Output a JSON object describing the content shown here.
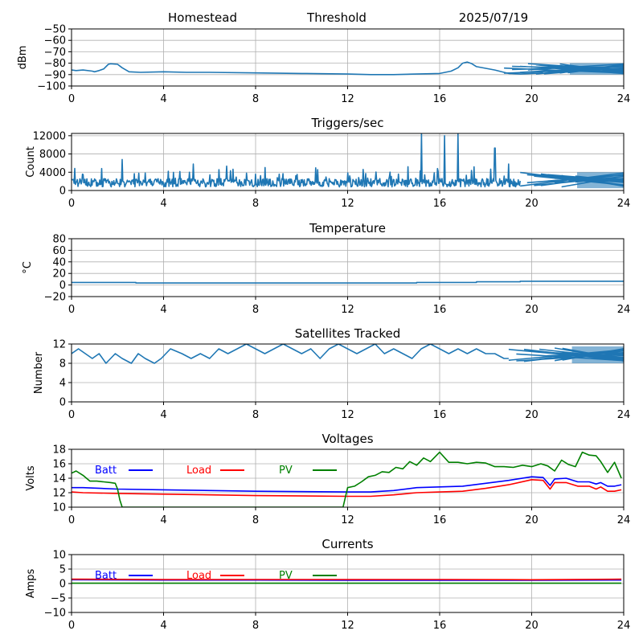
{
  "header": {
    "station": "Homestead",
    "mode": "Threshold",
    "date": "2025/07/19"
  },
  "chart_data": [
    {
      "id": "signal",
      "type": "line",
      "title": "",
      "ylabel": "dBm",
      "xlim": [
        0,
        24
      ],
      "ylim": [
        -100,
        -50
      ],
      "xticks": [
        "0",
        "4",
        "8",
        "12",
        "16",
        "20",
        "24"
      ],
      "yticks": [
        "−100",
        "−90",
        "−80",
        "−70",
        "−60",
        "−50"
      ],
      "grid": true,
      "series": [
        {
          "color": "#1f77b4",
          "x": [
            0,
            0.2,
            0.5,
            0.9,
            1.0,
            1.2,
            1.4,
            1.6,
            1.7,
            2.0,
            2.2,
            2.5,
            3.0,
            4.0,
            5.0,
            6.0,
            8.0,
            10.0,
            12.0,
            13.0,
            14.0,
            15.0,
            16.0,
            16.5,
            16.8,
            17.0,
            17.2,
            17.4,
            17.6,
            18.0,
            18.4,
            18.8,
            19.0,
            19.5,
            20.0,
            20.5
          ],
          "y": [
            -86,
            -86.5,
            -86,
            -87,
            -87.5,
            -86.5,
            -85,
            -81,
            -80.5,
            -81,
            -84,
            -87.5,
            -88,
            -87.5,
            -88,
            -88,
            -88.5,
            -89,
            -89.5,
            -90,
            -90,
            -89.5,
            -89,
            -87,
            -84,
            -80,
            -79,
            -80.5,
            -83,
            -84.5,
            -86,
            -88,
            -89,
            -89.5,
            -89,
            -88.5
          ]
        }
      ],
      "band": {
        "x": [
          18.8,
          24
        ],
        "y_low": -90,
        "y_high": -80
      }
    },
    {
      "id": "triggers",
      "type": "line",
      "title": "Triggers/sec",
      "ylabel": "Count",
      "xlim": [
        0,
        24
      ],
      "ylim": [
        0,
        12500
      ],
      "xticks": [
        "0",
        "4",
        "8",
        "12",
        "16",
        "20",
        "24"
      ],
      "yticks": [
        "0",
        "4000",
        "8000",
        "12000"
      ],
      "grid": true,
      "series": [
        {
          "color": "#1f77b4",
          "baseline": 1700,
          "noise": 1300,
          "spikes": [
            [
              0.5,
              3500
            ],
            [
              1.3,
              4800
            ],
            [
              2.2,
              6800
            ],
            [
              4.2,
              4200
            ],
            [
              5.3,
              5800
            ],
            [
              7.6,
              3800
            ],
            [
              9.8,
              3500
            ],
            [
              12.1,
              3200
            ],
            [
              14.2,
              3600
            ],
            [
              15.2,
              12500
            ],
            [
              15.9,
              4800
            ],
            [
              16.2,
              12000
            ],
            [
              16.8,
              12400
            ],
            [
              17.5,
              5200
            ],
            [
              18.4,
              9300
            ],
            [
              19.0,
              5800
            ],
            [
              19.6,
              4000
            ]
          ]
        }
      ],
      "band": {
        "x": [
          19.5,
          24
        ],
        "y_low": 500,
        "y_high": 4000
      }
    },
    {
      "id": "temperature",
      "type": "line",
      "title": "Temperature",
      "ylabel": "°C",
      "xlim": [
        0,
        24
      ],
      "ylim": [
        -20,
        80
      ],
      "xticks": [
        "0",
        "4",
        "8",
        "12",
        "16",
        "20",
        "24"
      ],
      "yticks": [
        "−20",
        "0",
        "20",
        "40",
        "60",
        "80"
      ],
      "grid": true,
      "series": [
        {
          "color": "#1f77b4",
          "x": [
            0,
            2.8,
            2.8,
            15.0,
            15.0,
            17.6,
            17.6,
            19.5,
            19.5,
            24
          ],
          "y": [
            4.5,
            4.5,
            3.5,
            3.5,
            4.5,
            4.5,
            5.5,
            5.5,
            6.5,
            6.5
          ]
        }
      ]
    },
    {
      "id": "satellites",
      "type": "line",
      "title": "Satellites Tracked",
      "ylabel": "Number",
      "xlim": [
        0,
        24
      ],
      "ylim": [
        0,
        12
      ],
      "xticks": [
        "0",
        "4",
        "8",
        "12",
        "16",
        "20",
        "24"
      ],
      "yticks": [
        "0",
        "4",
        "8",
        "12"
      ],
      "grid": true,
      "series": [
        {
          "color": "#1f77b4",
          "x": [
            0,
            0.3,
            0.6,
            0.9,
            1.2,
            1.5,
            1.9,
            2.2,
            2.6,
            2.9,
            3.2,
            3.6,
            3.9,
            4.3,
            4.8,
            5.2,
            5.6,
            6.0,
            6.4,
            6.8,
            7.2,
            7.6,
            8.0,
            8.4,
            8.8,
            9.2,
            9.6,
            10.0,
            10.4,
            10.8,
            11.2,
            11.6,
            12.0,
            12.4,
            12.8,
            13.2,
            13.6,
            14.0,
            14.4,
            14.8,
            15.2,
            15.6,
            16.0,
            16.4,
            16.8,
            17.2,
            17.6,
            18.0,
            18.4,
            18.8,
            19.0
          ],
          "y": [
            10,
            11,
            10,
            9,
            10,
            8,
            10,
            9,
            8,
            10,
            9,
            8,
            9,
            11,
            10,
            9,
            10,
            9,
            11,
            10,
            11,
            12,
            11,
            10,
            11,
            12,
            11,
            10,
            11,
            9,
            11,
            12,
            11,
            10,
            11,
            12,
            10,
            11,
            10,
            9,
            11,
            12,
            11,
            10,
            11,
            10,
            11,
            10,
            10,
            9,
            9
          ]
        }
      ],
      "band": {
        "x": [
          19.0,
          24
        ],
        "y_low": 8,
        "y_high": 11.5
      }
    },
    {
      "id": "voltages",
      "type": "line",
      "title": "Voltages",
      "ylabel": "Volts",
      "xlim": [
        0,
        24
      ],
      "ylim": [
        10,
        18
      ],
      "xticks": [
        "0",
        "4",
        "8",
        "12",
        "16",
        "20",
        "24"
      ],
      "yticks": [
        "10",
        "12",
        "14",
        "16",
        "18"
      ],
      "grid": true,
      "legend": "top-left",
      "series": [
        {
          "name": "Batt",
          "color": "#0000ff",
          "x": [
            0,
            0.5,
            2,
            4,
            8,
            12,
            13,
            14,
            15,
            16,
            17,
            18,
            19,
            20,
            20.5,
            20.8,
            21,
            21.5,
            22,
            22.5,
            22.8,
            23,
            23.3,
            23.6,
            23.9
          ],
          "y": [
            12.7,
            12.7,
            12.5,
            12.4,
            12.2,
            12.1,
            12.1,
            12.3,
            12.7,
            12.8,
            12.9,
            13.3,
            13.7,
            14.2,
            14.1,
            13.0,
            13.9,
            14.0,
            13.5,
            13.5,
            13.2,
            13.4,
            12.9,
            12.9,
            13.1
          ]
        },
        {
          "name": "Load",
          "color": "#ff0000",
          "x": [
            0,
            0.5,
            2,
            4,
            8,
            12,
            13,
            14,
            15,
            16,
            17,
            18,
            19,
            20,
            20.5,
            20.8,
            21,
            21.5,
            22,
            22.5,
            22.8,
            23,
            23.3,
            23.6,
            23.9
          ],
          "y": [
            12.1,
            12.0,
            11.9,
            11.8,
            11.6,
            11.5,
            11.5,
            11.7,
            12.0,
            12.1,
            12.2,
            12.6,
            13.1,
            13.8,
            13.7,
            12.5,
            13.4,
            13.4,
            12.9,
            12.9,
            12.5,
            12.8,
            12.2,
            12.2,
            12.4
          ]
        },
        {
          "name": "PV",
          "color": "#008000",
          "x": [
            0,
            0.2,
            0.5,
            0.8,
            1.1,
            1.4,
            1.7,
            1.9,
            2.0,
            2.1,
            2.2,
            11.8,
            12.0,
            12.3,
            12.6,
            12.9,
            13.2,
            13.5,
            13.8,
            14.1,
            14.4,
            14.7,
            15.0,
            15.3,
            15.6,
            16.0,
            16.4,
            16.8,
            17.2,
            17.6,
            18.0,
            18.4,
            18.8,
            19.2,
            19.6,
            20.0,
            20.4,
            20.7,
            21.0,
            21.3,
            21.6,
            21.9,
            22.2,
            22.5,
            22.8,
            23.0,
            23.3,
            23.6,
            23.9
          ],
          "y": [
            14.7,
            15.0,
            14.4,
            13.6,
            13.6,
            13.5,
            13.4,
            13.3,
            12.5,
            11.0,
            10.0,
            10.0,
            12.7,
            12.9,
            13.5,
            14.2,
            14.4,
            14.9,
            14.8,
            15.5,
            15.3,
            16.3,
            15.8,
            16.8,
            16.3,
            17.6,
            16.2,
            16.2,
            16.0,
            16.2,
            16.1,
            15.6,
            15.6,
            15.5,
            15.8,
            15.6,
            16.0,
            15.7,
            15.0,
            16.5,
            15.9,
            15.6,
            17.6,
            17.2,
            17.1,
            16.3,
            14.8,
            16.2,
            14.0
          ]
        }
      ]
    },
    {
      "id": "currents",
      "type": "line",
      "title": "Currents",
      "ylabel": "Amps",
      "xlim": [
        0,
        24
      ],
      "ylim": [
        -10,
        10
      ],
      "xticks": [
        "0",
        "4",
        "8",
        "12",
        "16",
        "20",
        "24"
      ],
      "yticks": [
        "−10",
        "−5",
        "0",
        "5",
        "10"
      ],
      "grid": true,
      "legend": "top-left",
      "series": [
        {
          "name": "Batt",
          "color": "#0000ff",
          "x": [
            0,
            4,
            8,
            12,
            16,
            20,
            23.9
          ],
          "y": [
            1.3,
            1.2,
            1.2,
            1.1,
            1.1,
            1.1,
            1.2
          ]
        },
        {
          "name": "Load",
          "color": "#ff0000",
          "x": [
            0,
            4,
            8,
            12,
            16,
            20,
            23.9
          ],
          "y": [
            1.5,
            1.4,
            1.4,
            1.4,
            1.4,
            1.3,
            1.5
          ]
        },
        {
          "name": "PV",
          "color": "#008000",
          "x": [
            0,
            4,
            8,
            12,
            16,
            20,
            23.9
          ],
          "y": [
            0.1,
            0.1,
            0.1,
            0.1,
            0.1,
            0.1,
            0.1
          ]
        }
      ]
    }
  ]
}
